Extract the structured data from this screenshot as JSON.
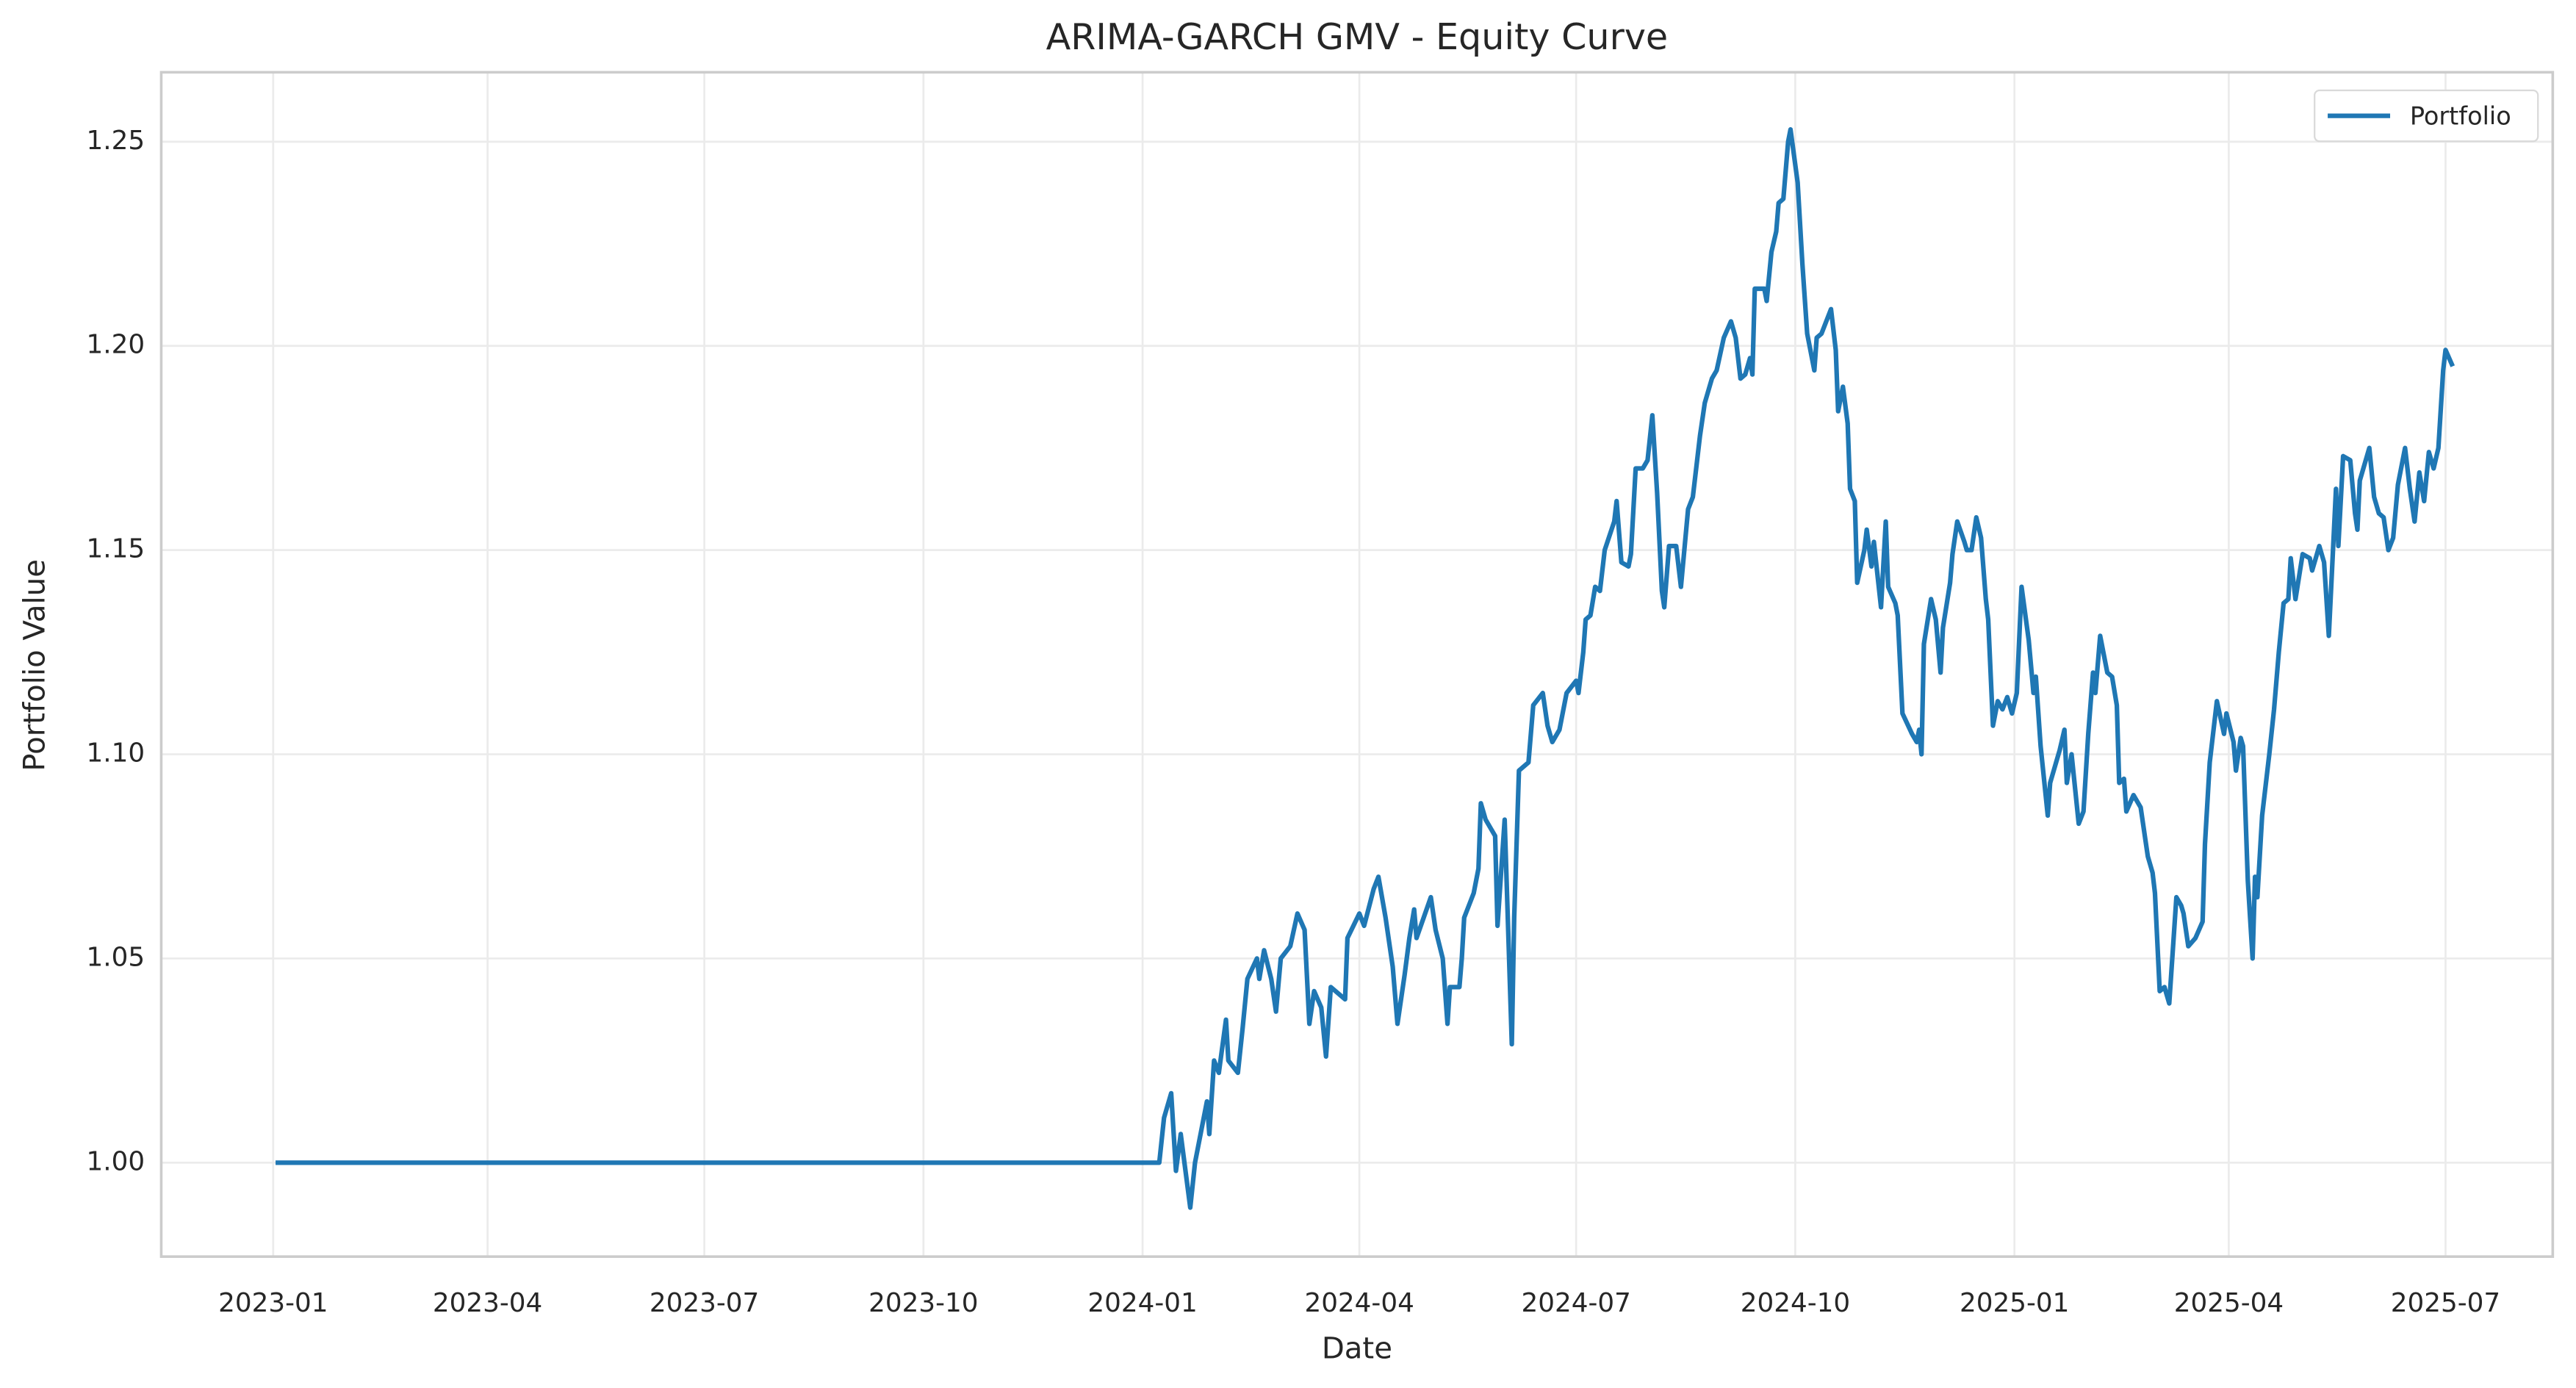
{
  "chart_data": {
    "type": "line",
    "title": "ARIMA-GARCH GMV - Equity Curve",
    "xlabel": "Date",
    "ylabel": "Portfolio Value",
    "x": [
      "2023-01-02",
      "2024-01-08",
      "2024-01-10",
      "2024-01-13",
      "2024-01-15",
      "2024-01-17",
      "2024-01-21",
      "2024-01-23",
      "2024-01-28",
      "2024-01-29",
      "2024-01-31",
      "2024-02-02",
      "2024-02-05",
      "2024-02-06",
      "2024-02-10",
      "2024-02-12",
      "2024-02-14",
      "2024-02-18",
      "2024-02-19",
      "2024-02-21",
      "2024-02-24",
      "2024-02-26",
      "2024-02-28",
      "2024-03-03",
      "2024-03-06",
      "2024-03-09",
      "2024-03-11",
      "2024-03-13",
      "2024-03-16",
      "2024-03-18",
      "2024-03-20",
      "2024-03-26",
      "2024-03-27",
      "2024-04-01",
      "2024-04-03",
      "2024-04-07",
      "2024-04-09",
      "2024-04-12",
      "2024-04-15",
      "2024-04-17",
      "2024-04-20",
      "2024-04-22",
      "2024-04-24",
      "2024-04-25",
      "2024-04-28",
      "2024-05-01",
      "2024-05-03",
      "2024-05-06",
      "2024-05-08",
      "2024-05-09",
      "2024-05-13",
      "2024-05-14",
      "2024-05-15",
      "2024-05-19",
      "2024-05-21",
      "2024-05-22",
      "2024-05-24",
      "2024-05-28",
      "2024-05-29",
      "2024-06-01",
      "2024-06-04",
      "2024-06-05",
      "2024-06-07",
      "2024-06-11",
      "2024-06-13",
      "2024-06-17",
      "2024-06-19",
      "2024-06-21",
      "2024-06-24",
      "2024-06-27",
      "2024-07-01",
      "2024-07-02",
      "2024-07-04",
      "2024-07-05",
      "2024-07-07",
      "2024-07-09",
      "2024-07-11",
      "2024-07-13",
      "2024-07-17",
      "2024-07-18",
      "2024-07-20",
      "2024-07-23",
      "2024-07-24",
      "2024-07-26",
      "2024-07-29",
      "2024-07-31",
      "2024-08-02",
      "2024-08-04",
      "2024-08-06",
      "2024-08-07",
      "2024-08-09",
      "2024-08-12",
      "2024-08-14",
      "2024-08-17",
      "2024-08-19",
      "2024-08-22",
      "2024-08-24",
      "2024-08-27",
      "2024-08-29",
      "2024-09-01",
      "2024-09-04",
      "2024-09-06",
      "2024-09-08",
      "2024-09-10",
      "2024-09-12",
      "2024-09-13",
      "2024-09-14",
      "2024-09-18",
      "2024-09-19",
      "2024-09-21",
      "2024-09-23",
      "2024-09-24",
      "2024-09-26",
      "2024-09-28",
      "2024-09-29",
      "2024-10-02",
      "2024-10-04",
      "2024-10-06",
      "2024-10-09",
      "2024-10-10",
      "2024-10-12",
      "2024-10-16",
      "2024-10-18",
      "2024-10-19",
      "2024-10-21",
      "2024-10-23",
      "2024-10-24",
      "2024-10-26",
      "2024-10-27",
      "2024-10-30",
      "2024-10-31",
      "2024-11-02",
      "2024-11-03",
      "2024-11-06",
      "2024-11-08",
      "2024-11-09",
      "2024-11-12",
      "2024-11-13",
      "2024-11-15",
      "2024-11-19",
      "2024-11-21",
      "2024-11-22",
      "2024-11-23",
      "2024-11-24",
      "2024-11-27",
      "2024-11-29",
      "2024-12-01",
      "2024-12-02",
      "2024-12-05",
      "2024-12-06",
      "2024-12-08",
      "2024-12-11",
      "2024-12-12",
      "2024-12-14",
      "2024-12-16",
      "2024-12-18",
      "2024-12-20",
      "2024-12-21",
      "2024-12-23",
      "2024-12-25",
      "2024-12-27",
      "2024-12-29",
      "2024-12-31",
      "2025-01-02",
      "2025-01-04",
      "2025-01-07",
      "2025-01-09",
      "2025-01-10",
      "2025-01-12",
      "2025-01-15",
      "2025-01-16",
      "2025-01-20",
      "2025-01-22",
      "2025-01-23",
      "2025-01-25",
      "2025-01-28",
      "2025-01-30",
      "2025-02-01",
      "2025-02-03",
      "2025-02-04",
      "2025-02-06",
      "2025-02-09",
      "2025-02-11",
      "2025-02-13",
      "2025-02-14",
      "2025-02-16",
      "2025-02-17",
      "2025-02-20",
      "2025-02-23",
      "2025-02-26",
      "2025-02-28",
      "2025-03-01",
      "2025-03-03",
      "2025-03-05",
      "2025-03-07",
      "2025-03-10",
      "2025-03-12",
      "2025-03-13",
      "2025-03-15",
      "2025-03-18",
      "2025-03-21",
      "2025-03-22",
      "2025-03-24",
      "2025-03-27",
      "2025-03-30",
      "2025-03-31",
      "2025-04-03",
      "2025-04-04",
      "2025-04-06",
      "2025-04-07",
      "2025-04-09",
      "2025-04-11",
      "2025-04-12",
      "2025-04-13",
      "2025-04-15",
      "2025-04-18",
      "2025-04-20",
      "2025-04-22",
      "2025-04-24",
      "2025-04-26",
      "2025-04-27",
      "2025-04-29",
      "2025-05-02",
      "2025-05-05",
      "2025-05-06",
      "2025-05-09",
      "2025-05-11",
      "2025-05-13",
      "2025-05-16",
      "2025-05-17",
      "2025-05-19",
      "2025-05-22",
      "2025-05-24",
      "2025-05-25",
      "2025-05-26",
      "2025-05-30",
      "2025-06-01",
      "2025-06-03",
      "2025-06-05",
      "2025-06-07",
      "2025-06-09",
      "2025-06-11",
      "2025-06-14",
      "2025-06-16",
      "2025-06-18",
      "2025-06-20",
      "2025-06-22",
      "2025-06-24",
      "2025-06-26",
      "2025-06-28",
      "2025-06-30",
      "2025-07-01",
      "2025-07-04"
    ],
    "series": [
      {
        "name": "Portfolio",
        "color": "#1f77b4",
        "values": [
          1.0,
          1.0,
          1.011,
          1.017,
          0.998,
          1.007,
          0.989,
          1.0,
          1.015,
          1.007,
          1.025,
          1.022,
          1.035,
          1.025,
          1.022,
          1.033,
          1.045,
          1.05,
          1.045,
          1.052,
          1.045,
          1.037,
          1.05,
          1.053,
          1.061,
          1.057,
          1.034,
          1.042,
          1.038,
          1.026,
          1.043,
          1.04,
          1.055,
          1.061,
          1.058,
          1.067,
          1.07,
          1.06,
          1.048,
          1.034,
          1.046,
          1.055,
          1.062,
          1.055,
          1.06,
          1.065,
          1.057,
          1.05,
          1.034,
          1.043,
          1.043,
          1.05,
          1.06,
          1.066,
          1.072,
          1.088,
          1.084,
          1.08,
          1.058,
          1.084,
          1.029,
          1.06,
          1.096,
          1.098,
          1.112,
          1.115,
          1.107,
          1.103,
          1.106,
          1.115,
          1.118,
          1.115,
          1.125,
          1.133,
          1.134,
          1.141,
          1.14,
          1.15,
          1.157,
          1.162,
          1.147,
          1.146,
          1.149,
          1.17,
          1.17,
          1.172,
          1.183,
          1.164,
          1.14,
          1.136,
          1.151,
          1.151,
          1.141,
          1.16,
          1.163,
          1.178,
          1.186,
          1.192,
          1.194,
          1.202,
          1.206,
          1.202,
          1.192,
          1.193,
          1.197,
          1.193,
          1.214,
          1.214,
          1.211,
          1.223,
          1.228,
          1.235,
          1.236,
          1.25,
          1.253,
          1.24,
          1.22,
          1.203,
          1.194,
          1.202,
          1.203,
          1.209,
          1.199,
          1.184,
          1.19,
          1.181,
          1.165,
          1.162,
          1.142,
          1.15,
          1.155,
          1.146,
          1.152,
          1.136,
          1.157,
          1.141,
          1.137,
          1.134,
          1.11,
          1.105,
          1.103,
          1.106,
          1.1,
          1.127,
          1.138,
          1.133,
          1.12,
          1.131,
          1.142,
          1.149,
          1.157,
          1.152,
          1.15,
          1.15,
          1.158,
          1.153,
          1.138,
          1.133,
          1.107,
          1.113,
          1.111,
          1.114,
          1.11,
          1.115,
          1.141,
          1.128,
          1.115,
          1.119,
          1.102,
          1.085,
          1.093,
          1.101,
          1.106,
          1.093,
          1.1,
          1.083,
          1.086,
          1.105,
          1.12,
          1.115,
          1.129,
          1.12,
          1.119,
          1.112,
          1.093,
          1.094,
          1.086,
          1.09,
          1.087,
          1.075,
          1.071,
          1.066,
          1.042,
          1.043,
          1.039,
          1.065,
          1.063,
          1.061,
          1.053,
          1.055,
          1.059,
          1.078,
          1.098,
          1.113,
          1.105,
          1.11,
          1.103,
          1.096,
          1.104,
          1.102,
          1.069,
          1.05,
          1.07,
          1.065,
          1.085,
          1.1,
          1.111,
          1.125,
          1.137,
          1.138,
          1.148,
          1.138,
          1.149,
          1.148,
          1.145,
          1.151,
          1.147,
          1.129,
          1.165,
          1.151,
          1.173,
          1.172,
          1.159,
          1.155,
          1.167,
          1.175,
          1.163,
          1.159,
          1.158,
          1.15,
          1.153,
          1.166,
          1.175,
          1.165,
          1.157,
          1.169,
          1.162,
          1.174,
          1.17,
          1.175,
          1.194,
          1.199,
          1.195
        ]
      }
    ],
    "xlim": [
      "2022-11-15",
      "2025-08-15"
    ],
    "xticks": [
      {
        "value": "2023-01-01",
        "label": "2023-01"
      },
      {
        "value": "2023-04-01",
        "label": "2023-04"
      },
      {
        "value": "2023-07-01",
        "label": "2023-07"
      },
      {
        "value": "2023-10-01",
        "label": "2023-10"
      },
      {
        "value": "2024-01-01",
        "label": "2024-01"
      },
      {
        "value": "2024-04-01",
        "label": "2024-04"
      },
      {
        "value": "2024-07-01",
        "label": "2024-07"
      },
      {
        "value": "2024-10-01",
        "label": "2024-10"
      },
      {
        "value": "2025-01-01",
        "label": "2025-01"
      },
      {
        "value": "2025-04-01",
        "label": "2025-04"
      },
      {
        "value": "2025-07-01",
        "label": "2025-07"
      }
    ],
    "ylim": [
      0.977,
      1.267
    ],
    "yticks": [
      {
        "value": 1,
        "label": "1.00"
      },
      1.05,
      {
        "value": 1.1,
        "label": "1.10"
      },
      1.15,
      {
        "value": 1.2,
        "label": "1.20"
      },
      1.25
    ],
    "grid": true,
    "legend": "upper right"
  }
}
